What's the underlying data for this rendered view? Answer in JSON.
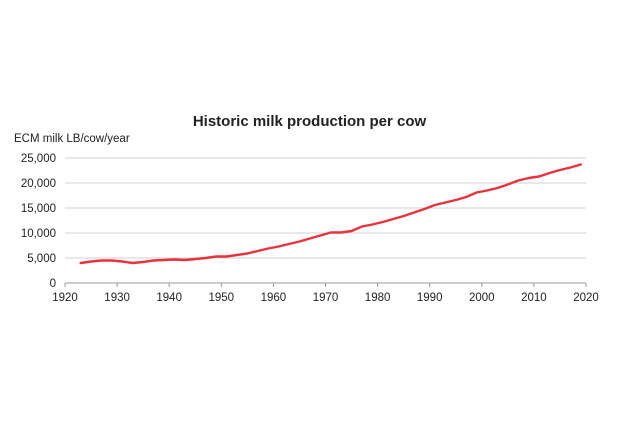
{
  "chart_data": {
    "type": "line",
    "title": "Historic milk production per cow",
    "ylabel": "ECM milk LB/cow/year",
    "xlabel": "",
    "xlim": [
      1920,
      2020
    ],
    "ylim": [
      0,
      25000
    ],
    "x_ticks": [
      1920,
      1930,
      1940,
      1950,
      1960,
      1970,
      1980,
      1990,
      2000,
      2010,
      2020
    ],
    "y_ticks": [
      0,
      5000,
      10000,
      15000,
      20000,
      25000
    ],
    "y_tick_labels": [
      "0",
      "5,000",
      "10,000",
      "15,000",
      "20,000",
      "25,000"
    ],
    "grid": "horizontal",
    "line_color": "#e8333e",
    "grid_color": "#d0d0d0",
    "series": [
      {
        "x": [
          1923,
          1925,
          1927,
          1929,
          1931,
          1933,
          1935,
          1937,
          1939,
          1941,
          1943,
          1945,
          1947,
          1949,
          1951,
          1953,
          1955,
          1957,
          1959,
          1961,
          1963,
          1965,
          1967,
          1969,
          1971,
          1973,
          1975,
          1977,
          1979,
          1981,
          1983,
          1985,
          1987,
          1989,
          1991,
          1993,
          1995,
          1997,
          1999,
          2001,
          2003,
          2005,
          2007,
          2009,
          2011,
          2013,
          2015,
          2017,
          2019
        ],
        "y": [
          4000,
          4300,
          4500,
          4500,
          4300,
          4000,
          4200,
          4500,
          4600,
          4700,
          4600,
          4800,
          5000,
          5300,
          5300,
          5600,
          5900,
          6400,
          6900,
          7300,
          7800,
          8300,
          8900,
          9500,
          10100,
          10100,
          10400,
          11300,
          11700,
          12200,
          12800,
          13400,
          14100,
          14800,
          15600,
          16100,
          16600,
          17200,
          18100,
          18500,
          19000,
          19700,
          20500,
          21000,
          21300,
          22000,
          22600,
          23100,
          23700
        ]
      }
    ]
  }
}
